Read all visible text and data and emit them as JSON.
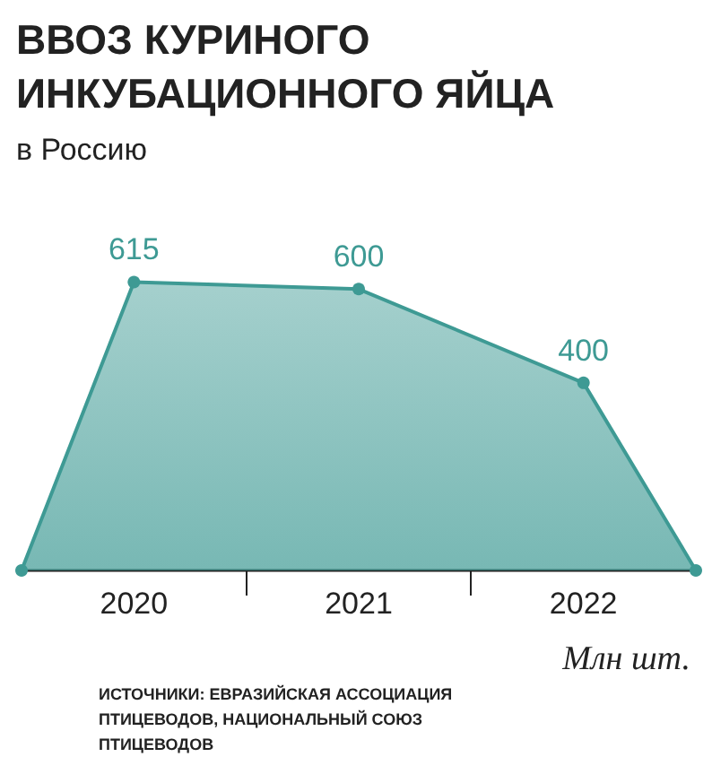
{
  "chart_data": {
    "type": "area",
    "title": "ВВОЗ КУРИНОГО\nИНКУБАЦИОННОГО ЯЙЦА",
    "subtitle": "в Россию",
    "x": [
      2019.5,
      2020,
      2021,
      2022,
      2022.5
    ],
    "series": [
      {
        "color": "#3e9a94",
        "values": [
          0,
          615,
          600,
          400,
          0
        ],
        "value_labels": [
          null,
          "615",
          "600",
          "400",
          null
        ]
      }
    ],
    "xlim": [
      2019.5,
      2022.5
    ],
    "xticks": [
      2020,
      {
        "value": 2020.5,
        "label": null
      },
      2021,
      {
        "value": 2021.5,
        "label": null
      },
      2022
    ],
    "tick_labels": "x",
    "grid": false,
    "marker": "circle",
    "annotations": [
      "Млн шт.",
      "ИСТОЧНИКИ: ЕВРАЗИЙСКАЯ АССОЦИАЦИЯ ПТИЦЕВОДОВ, НАЦИОНАЛЬНЫЙ СОЮЗ ПТИЦЕВОДОВ"
    ]
  }
}
